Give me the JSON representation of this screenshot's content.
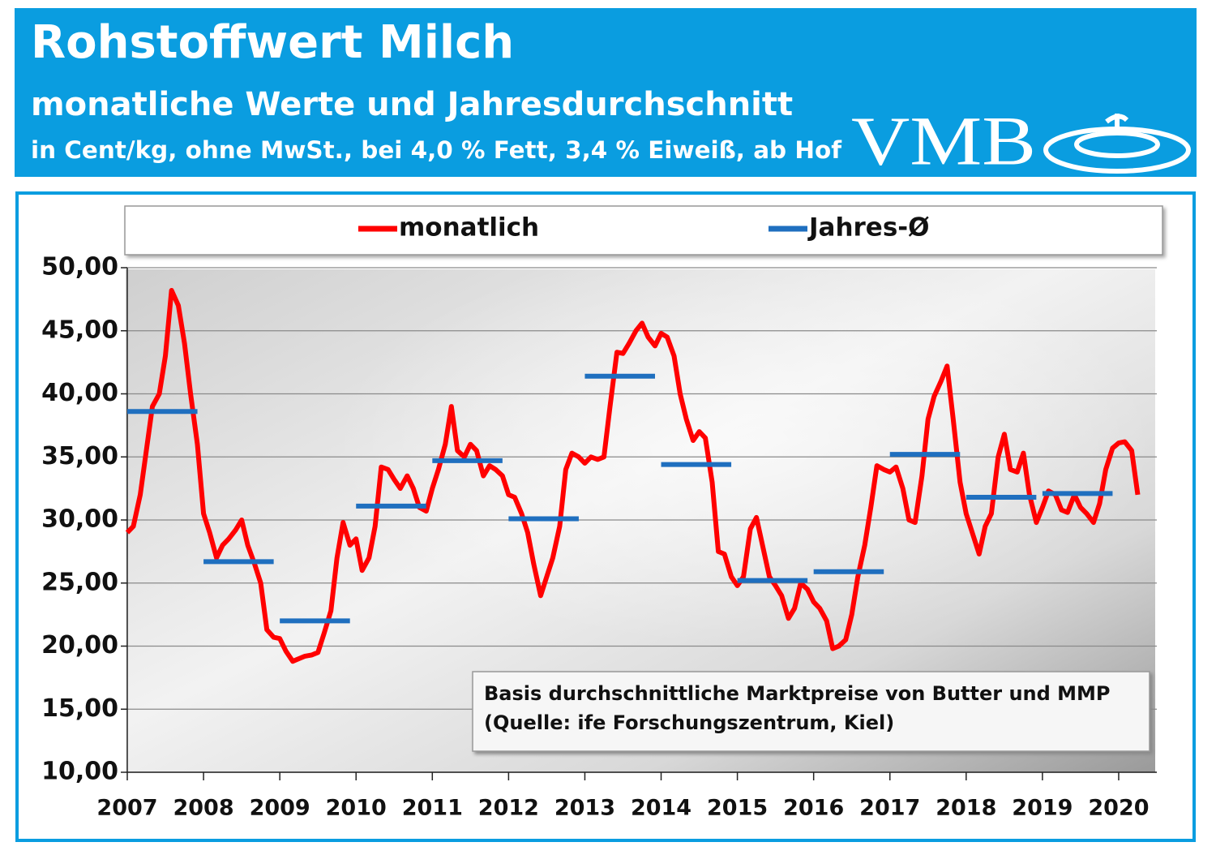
{
  "chart_data": {
    "type": "line",
    "title": "Rohstoffwert Milch",
    "subtitle": "monatliche Werte und Jahresdurchschnitt",
    "note": "in Cent/kg, ohne MwSt., bei 4,0 % Fett, 3,4 % Eiweiß, ab Hof",
    "logo": "VMB",
    "annotations": [
      "Basis durchschnittliche Marktpreise von Butter und MMP",
      "(Quelle: ife Forschungszentrum, Kiel)"
    ],
    "legend": "top",
    "grid": true,
    "xlim": [
      2007,
      2020.5
    ],
    "xticks": [
      2007,
      2008,
      2009,
      2010,
      2011,
      2012,
      2013,
      2014,
      2015,
      2016,
      2017,
      2018,
      2019,
      2020
    ],
    "ylim": [
      10,
      50
    ],
    "yticks": [
      {
        "value": 10,
        "label": "10,00"
      },
      {
        "value": 15,
        "label": "15,00"
      },
      {
        "value": 20,
        "label": "20,00"
      },
      {
        "value": 25,
        "label": "25,00"
      },
      {
        "value": 30,
        "label": "30,00"
      },
      {
        "value": 35,
        "label": "35,00"
      },
      {
        "value": 40,
        "label": "40,00"
      },
      {
        "value": 45,
        "label": "45,00"
      },
      {
        "value": 50,
        "label": "50,00"
      }
    ],
    "series": [
      {
        "name": "monatlich",
        "color": "#ff0000",
        "x": [
          2007,
          2007.08,
          2007.17,
          2007.25,
          2007.33,
          2007.42,
          2007.5,
          2007.58,
          2007.67,
          2007.75,
          2007.83,
          2007.92,
          2008,
          2008.08,
          2008.17,
          2008.25,
          2008.33,
          2008.42,
          2008.5,
          2008.58,
          2008.67,
          2008.75,
          2008.83,
          2008.92,
          2009,
          2009.08,
          2009.17,
          2009.25,
          2009.33,
          2009.42,
          2009.5,
          2009.58,
          2009.67,
          2009.75,
          2009.83,
          2009.92,
          2010,
          2010.08,
          2010.17,
          2010.25,
          2010.33,
          2010.42,
          2010.5,
          2010.58,
          2010.67,
          2010.75,
          2010.83,
          2010.92,
          2011,
          2011.08,
          2011.17,
          2011.25,
          2011.33,
          2011.42,
          2011.5,
          2011.58,
          2011.67,
          2011.75,
          2011.83,
          2011.92,
          2012,
          2012.08,
          2012.17,
          2012.25,
          2012.33,
          2012.42,
          2012.5,
          2012.58,
          2012.67,
          2012.75,
          2012.83,
          2012.92,
          2013,
          2013.08,
          2013.17,
          2013.25,
          2013.33,
          2013.42,
          2013.5,
          2013.58,
          2013.67,
          2013.75,
          2013.83,
          2013.92,
          2014,
          2014.08,
          2014.17,
          2014.25,
          2014.33,
          2014.42,
          2014.5,
          2014.58,
          2014.67,
          2014.75,
          2014.83,
          2014.92,
          2015,
          2015.08,
          2015.17,
          2015.25,
          2015.33,
          2015.42,
          2015.5,
          2015.58,
          2015.67,
          2015.75,
          2015.83,
          2015.92,
          2016,
          2016.08,
          2016.17,
          2016.25,
          2016.33,
          2016.42,
          2016.5,
          2016.58,
          2016.67,
          2016.75,
          2016.83,
          2016.92,
          2017,
          2017.08,
          2017.17,
          2017.25,
          2017.33,
          2017.42,
          2017.5,
          2017.58,
          2017.67,
          2017.75,
          2017.83,
          2017.92,
          2018,
          2018.08,
          2018.17,
          2018.25,
          2018.33,
          2018.42,
          2018.5,
          2018.58,
          2018.67,
          2018.75,
          2018.83,
          2018.92,
          2019,
          2019.08,
          2019.17,
          2019.25,
          2019.33,
          2019.42,
          2019.5,
          2019.58,
          2019.67,
          2019.75,
          2019.83,
          2019.92,
          2020,
          2020.08,
          2020.17,
          2020.25
        ],
        "values": [
          29,
          29.5,
          32,
          35.5,
          39,
          40,
          43,
          48.2,
          47,
          44,
          40,
          36,
          30.5,
          29,
          27,
          28,
          28.5,
          29.2,
          30,
          28,
          26.5,
          25,
          21.3,
          20.7,
          20.6,
          19.6,
          18.8,
          19,
          19.2,
          19.3,
          19.5,
          21,
          22.8,
          27,
          29.8,
          28,
          28.5,
          26,
          27,
          29.5,
          34.2,
          34,
          33.2,
          32.5,
          33.5,
          32.5,
          31,
          30.7,
          32.5,
          34,
          36,
          39,
          35.5,
          35,
          36,
          35.5,
          33.5,
          34.3,
          34,
          33.5,
          32,
          31.8,
          30.5,
          29,
          26.5,
          24,
          25.5,
          27,
          29.5,
          34,
          35.3,
          35,
          34.5,
          35,
          34.8,
          35,
          39,
          43.3,
          43.2,
          44,
          45,
          45.6,
          44.5,
          43.8,
          44.8,
          44.5,
          43,
          40,
          38,
          36.3,
          37,
          36.5,
          33,
          27.5,
          27.3,
          25.5,
          24.8,
          25.5,
          29.3,
          30.2,
          28,
          25.5,
          24.8,
          24,
          22.2,
          23,
          25,
          24.5,
          23.5,
          23,
          22,
          19.8,
          20,
          20.5,
          22.5,
          25.5,
          28,
          31,
          34.3,
          34,
          33.8,
          34.2,
          32.5,
          30,
          29.8,
          33.5,
          38,
          39.8,
          41,
          42.2,
          38,
          33,
          30.5,
          29,
          27.3,
          29.5,
          30.5,
          35,
          36.8,
          34,
          33.8,
          35.3,
          32,
          29.8,
          31,
          32.3,
          32,
          30.8,
          30.6,
          32,
          31,
          30.5,
          29.8,
          31.3,
          34,
          35.7,
          36.1,
          36.2,
          35.5,
          32
        ]
      },
      {
        "name": "Jahres-Ø",
        "color": "#1f6fbf",
        "x": [
          2007,
          2008,
          2009,
          2010,
          2011,
          2012,
          2013,
          2014,
          2015,
          2016,
          2017,
          2018,
          2019
        ],
        "values": [
          38.6,
          26.7,
          22,
          31.1,
          34.7,
          30.1,
          41.4,
          34.4,
          25.2,
          25.9,
          35.2,
          31.8,
          32.1
        ]
      }
    ]
  }
}
